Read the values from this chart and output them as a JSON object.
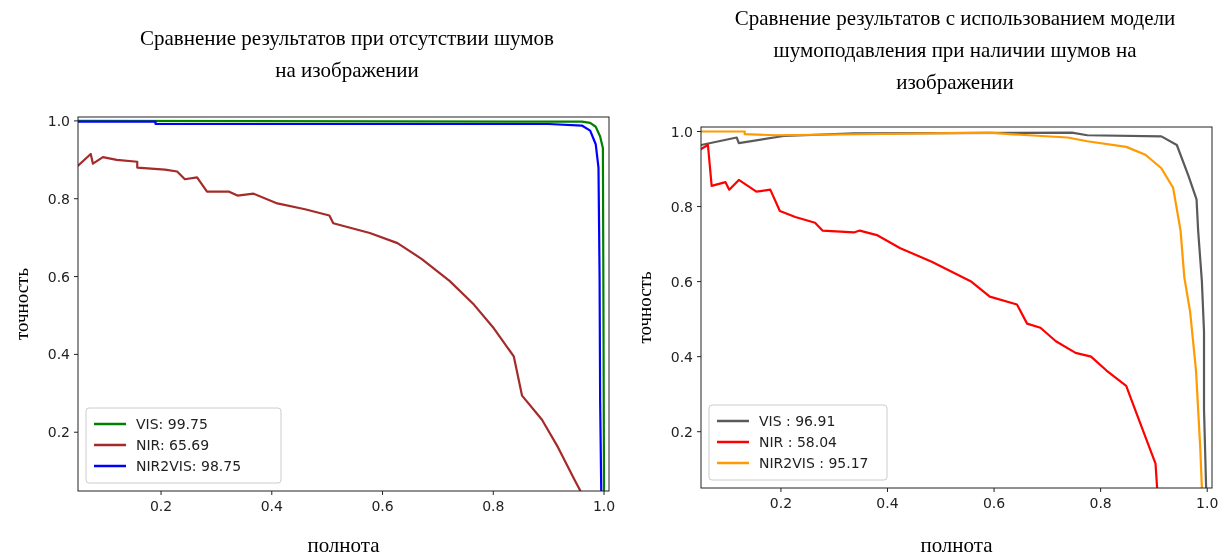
{
  "chart_data": [
    {
      "type": "line",
      "title": "Сравнение результатов при отсутствии шумов\nна изображении",
      "xlabel": "полнота",
      "ylabel": "точность",
      "xlim": [
        0.05,
        1.009
      ],
      "ylim": [
        0.049,
        1.01
      ],
      "xticks": [
        0.2,
        0.4,
        0.6,
        0.8,
        {
          "value": 1,
          "label": "1.0"
        }
      ],
      "yticks": [
        0.2,
        0.4,
        0.6,
        0.8,
        {
          "value": 1,
          "label": "1.0"
        }
      ],
      "legend": "bottom left",
      "grid": false,
      "series": [
        {
          "name": "VIS: 99.75",
          "color": "#008000",
          "x": [
            0.05,
            0.96,
            0.975,
            0.985,
            0.993,
            0.998,
            0.999,
            1.0
          ],
          "values": [
            1.0,
            0.998,
            0.995,
            0.985,
            0.96,
            0.93,
            0.5,
            0.05
          ]
        },
        {
          "name": "NIR: 65.69",
          "color": "#a52a2a",
          "x": [
            0.05,
            0.073,
            0.077,
            0.095,
            0.12,
            0.157,
            0.157,
            0.207,
            0.229,
            0.243,
            0.265,
            0.283,
            0.323,
            0.338,
            0.367,
            0.41,
            0.46,
            0.504,
            0.511,
            0.577,
            0.627,
            0.671,
            0.721,
            0.765,
            0.801,
            0.837,
            0.852,
            0.888,
            0.917,
            0.946,
            0.957
          ],
          "values": [
            0.885,
            0.915,
            0.89,
            0.907,
            0.9,
            0.895,
            0.88,
            0.875,
            0.87,
            0.85,
            0.855,
            0.818,
            0.818,
            0.808,
            0.813,
            0.788,
            0.773,
            0.757,
            0.737,
            0.712,
            0.686,
            0.645,
            0.589,
            0.528,
            0.467,
            0.395,
            0.294,
            0.232,
            0.161,
            0.08,
            0.05
          ]
        },
        {
          "name": "NIR2VIS: 98.75",
          "color": "#0000ff",
          "x": [
            0.05,
            0.19,
            0.19,
            0.9,
            0.96,
            0.975,
            0.985,
            0.99,
            0.992,
            0.993,
            0.995
          ],
          "values": [
            0.998,
            0.998,
            0.992,
            0.992,
            0.988,
            0.975,
            0.94,
            0.88,
            0.6,
            0.28,
            0.05
          ]
        }
      ]
    },
    {
      "type": "line",
      "title": "Сравнение результатов с использованием модели\nшумоподавления при наличии шумов на\nизображении",
      "xlabel": "полнота",
      "ylabel": "точность",
      "xlim": [
        0.05,
        1.009
      ],
      "ylim": [
        0.05,
        1.012
      ],
      "xticks": [
        0.2,
        0.4,
        0.6,
        0.8,
        {
          "value": 1,
          "label": "1.0"
        }
      ],
      "yticks": [
        0.2,
        0.4,
        0.6,
        0.8,
        {
          "value": 1,
          "label": "1.0"
        }
      ],
      "legend": "bottom left",
      "grid": false,
      "series": [
        {
          "name": "VIS : 96.91",
          "color": "#5a5a5a",
          "x": [
            0.05,
            0.117,
            0.121,
            0.205,
            0.337,
            0.746,
            0.775,
            0.914,
            0.943,
            0.965,
            0.98,
            0.983,
            0.99,
            0.994,
            0.994,
            0.998
          ],
          "values": [
            0.964,
            0.984,
            0.969,
            0.988,
            0.995,
            0.997,
            0.99,
            0.987,
            0.964,
            0.881,
            0.819,
            0.736,
            0.601,
            0.467,
            0.26,
            0.05
          ]
        },
        {
          "name": "NIR : 58.04",
          "color": "#ff0000",
          "x": [
            0.05,
            0.063,
            0.07,
            0.096,
            0.103,
            0.121,
            0.154,
            0.18,
            0.198,
            0.227,
            0.264,
            0.278,
            0.337,
            0.348,
            0.38,
            0.424,
            0.483,
            0.556,
            0.592,
            0.643,
            0.662,
            0.687,
            0.716,
            0.753,
            0.782,
            0.811,
            0.848,
            0.87,
            0.892,
            0.903,
            0.906
          ],
          "values": [
            0.953,
            0.964,
            0.855,
            0.865,
            0.845,
            0.871,
            0.84,
            0.845,
            0.788,
            0.772,
            0.757,
            0.736,
            0.731,
            0.736,
            0.724,
            0.689,
            0.653,
            0.601,
            0.56,
            0.539,
            0.488,
            0.477,
            0.441,
            0.41,
            0.4,
            0.363,
            0.322,
            0.239,
            0.156,
            0.115,
            0.05
          ]
        },
        {
          "name": "NIR2VIS : 95.17",
          "color": "#ff9a00",
          "x": [
            0.05,
            0.132,
            0.132,
            0.19,
            0.592,
            0.629,
            0.738,
            0.775,
            0.848,
            0.884,
            0.914,
            0.936,
            0.95,
            0.957,
            0.968,
            0.979,
            0.987,
            0.99
          ],
          "values": [
            1.0,
            1.0,
            0.993,
            0.99,
            0.997,
            0.993,
            0.984,
            0.974,
            0.959,
            0.938,
            0.902,
            0.85,
            0.736,
            0.612,
            0.519,
            0.363,
            0.156,
            0.05
          ]
        }
      ]
    }
  ]
}
